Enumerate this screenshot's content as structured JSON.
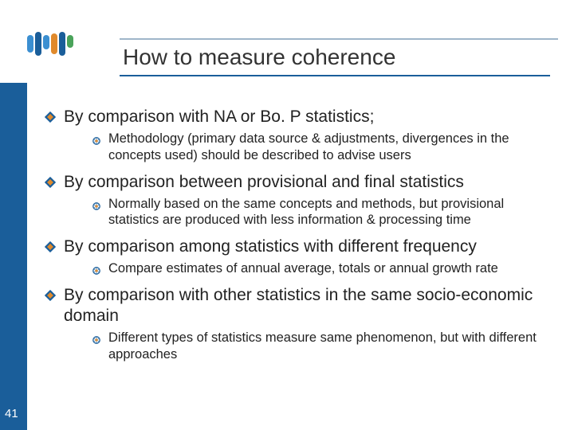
{
  "palette": {
    "band_color": "#1a5e9a",
    "rule_top_color": "#9fb6c9",
    "title_color": "#333333",
    "text_color": "#222222",
    "logo_bars": [
      {
        "height": 22,
        "color": "#3b8fd1",
        "offset": 4
      },
      {
        "height": 30,
        "color": "#1a5e9a",
        "offset": 0
      },
      {
        "height": 18,
        "color": "#3b8fd1",
        "offset": 8
      },
      {
        "height": 26,
        "color": "#e08a2c",
        "offset": 2
      },
      {
        "height": 30,
        "color": "#1a5e9a",
        "offset": 0
      },
      {
        "height": 16,
        "color": "#4aa35a",
        "offset": 10
      }
    ],
    "diamond_outer": "#1a5e9a",
    "diamond_inner": "#e08a2c",
    "circle_stroke": "#1a5e9a",
    "circle_inner": "#e08a2c"
  },
  "title": "How to measure coherence",
  "points": [
    {
      "main": "By comparison with NA or Bo. P statistics;",
      "sub": "Methodology (primary data source & adjustments, divergences in the concepts used) should be described to advise users"
    },
    {
      "main": "By comparison between provisional and final statistics",
      "sub": "Normally based on the same concepts and methods, but provisional statistics are produced with less information & processing time"
    },
    {
      "main": "By comparison among statistics with different frequency",
      "sub": "Compare estimates of annual average, totals or annual growth rate"
    },
    {
      "main": "By comparison with other statistics in the same socio-economic domain",
      "sub": "Different types of statistics measure same phenomenon, but with different approaches"
    }
  ],
  "page_number": "41"
}
